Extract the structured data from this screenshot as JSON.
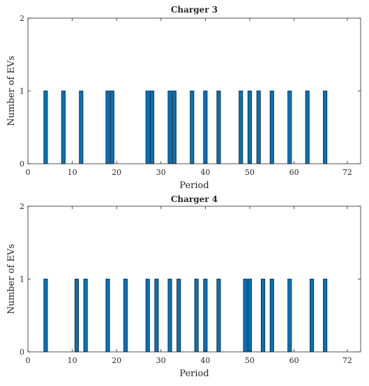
{
  "chart_data": [
    {
      "type": "bar",
      "title": "Charger 3",
      "xlabel": "Period",
      "ylabel": "Number of EVs",
      "xlim": [
        0,
        75
      ],
      "ylim": [
        0,
        2
      ],
      "xticks": [
        0,
        10,
        20,
        30,
        40,
        50,
        60,
        72
      ],
      "yticks": [
        0,
        1,
        2
      ],
      "x": [
        4,
        8,
        12,
        18,
        19,
        27,
        28,
        32,
        33,
        37,
        40,
        43,
        48,
        50,
        52,
        55,
        59,
        63,
        67
      ],
      "values": [
        1,
        1,
        1,
        1,
        1,
        1,
        1,
        1,
        1,
        1,
        1,
        1,
        1,
        1,
        1,
        1,
        1,
        1,
        1
      ],
      "grid": false,
      "color": "#0072BD"
    },
    {
      "type": "bar",
      "title": "Charger 4",
      "xlabel": "Period",
      "ylabel": "Number of EVs",
      "xlim": [
        0,
        75
      ],
      "ylim": [
        0,
        2
      ],
      "xticks": [
        0,
        10,
        20,
        30,
        40,
        50,
        60,
        72
      ],
      "yticks": [
        0,
        1,
        2
      ],
      "x": [
        4,
        11,
        13,
        18,
        22,
        27,
        29,
        32,
        34,
        38,
        40,
        43,
        49,
        50,
        53,
        55,
        59,
        64,
        67
      ],
      "values": [
        1,
        1,
        1,
        1,
        1,
        1,
        1,
        1,
        1,
        1,
        1,
        1,
        1,
        1,
        1,
        1,
        1,
        1,
        1
      ],
      "grid": false,
      "color": "#0072BD"
    }
  ]
}
